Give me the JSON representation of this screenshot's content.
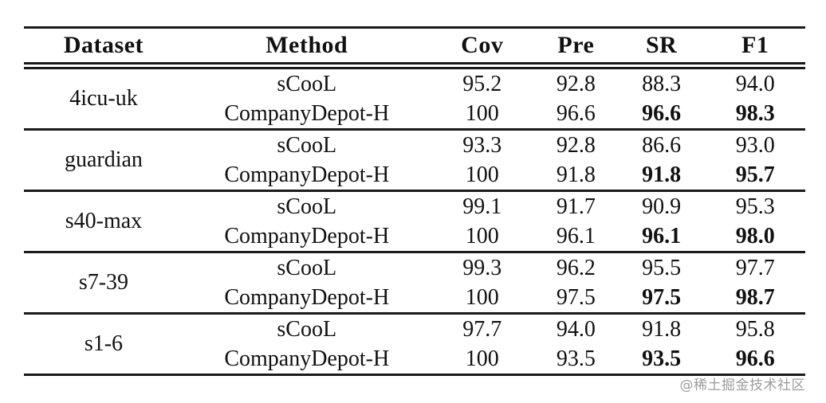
{
  "chart_data": {
    "type": "table",
    "columns": [
      "Dataset",
      "Method",
      "Cov",
      "Pre",
      "SR",
      "F1"
    ],
    "groups": [
      {
        "dataset": "4icu-uk",
        "rows": [
          {
            "method": "sCooL",
            "cov": "95.2",
            "pre": "92.8",
            "sr": "88.3",
            "f1": "94.0",
            "bold": []
          },
          {
            "method": "CompanyDepot-H",
            "cov": "100",
            "pre": "96.6",
            "sr": "96.6",
            "f1": "98.3",
            "bold": [
              "sr",
              "f1"
            ]
          }
        ]
      },
      {
        "dataset": "guardian",
        "rows": [
          {
            "method": "sCooL",
            "cov": "93.3",
            "pre": "92.8",
            "sr": "86.6",
            "f1": "93.0",
            "bold": []
          },
          {
            "method": "CompanyDepot-H",
            "cov": "100",
            "pre": "91.8",
            "sr": "91.8",
            "f1": "95.7",
            "bold": [
              "sr",
              "f1"
            ]
          }
        ]
      },
      {
        "dataset": "s40-max",
        "rows": [
          {
            "method": "sCooL",
            "cov": "99.1",
            "pre": "91.7",
            "sr": "90.9",
            "f1": "95.3",
            "bold": []
          },
          {
            "method": "CompanyDepot-H",
            "cov": "100",
            "pre": "96.1",
            "sr": "96.1",
            "f1": "98.0",
            "bold": [
              "sr",
              "f1"
            ]
          }
        ]
      },
      {
        "dataset": "s7-39",
        "rows": [
          {
            "method": "sCooL",
            "cov": "99.3",
            "pre": "96.2",
            "sr": "95.5",
            "f1": "97.7",
            "bold": []
          },
          {
            "method": "CompanyDepot-H",
            "cov": "100",
            "pre": "97.5",
            "sr": "97.5",
            "f1": "98.7",
            "bold": [
              "sr",
              "f1"
            ]
          }
        ]
      },
      {
        "dataset": "s1-6",
        "rows": [
          {
            "method": "sCooL",
            "cov": "97.7",
            "pre": "94.0",
            "sr": "91.8",
            "f1": "95.8",
            "bold": []
          },
          {
            "method": "CompanyDepot-H",
            "cov": "100",
            "pre": "93.5",
            "sr": "93.5",
            "f1": "96.6",
            "bold": [
              "sr",
              "f1"
            ]
          }
        ]
      }
    ]
  },
  "watermark": "@稀土掘金技术社区",
  "colors": {
    "text": "#111111",
    "rule": "#1a1a1a",
    "watermark": "#9c9c9c",
    "background": "#ffffff"
  }
}
